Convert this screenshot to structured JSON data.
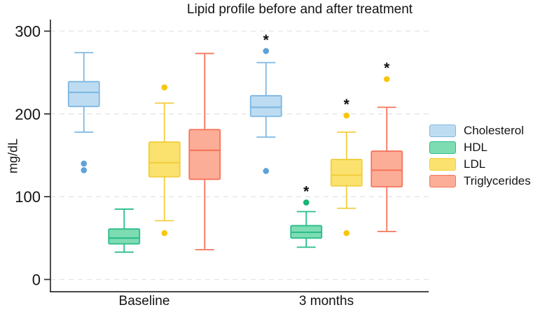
{
  "title": "Lipid profile before and after treatment",
  "y_axis": {
    "label": "mg/dL",
    "tick_labels": [
      "300",
      "200",
      "100",
      "0"
    ]
  },
  "x_axis": {
    "categories": [
      "Baseline",
      "3 months"
    ]
  },
  "significance_symbol": "*",
  "legend": {
    "position": "right",
    "items": [
      {
        "label": "Cholesterol",
        "fill": "#BEDCF1",
        "stroke": "#7EB8E3"
      },
      {
        "label": "HDL",
        "fill": "#7EDCB3",
        "stroke": "#2ABD8B"
      },
      {
        "label": "LDL",
        "fill": "#FBE26E",
        "stroke": "#F2CE3F"
      },
      {
        "label": "Triglycerides",
        "fill": "#FCAD97",
        "stroke": "#F4765C"
      }
    ]
  },
  "chart_data": {
    "type": "box",
    "title": "Lipid profile before and after treatment",
    "xlabel": "",
    "ylabel": "mg/dL",
    "yticks": [
      0,
      100,
      200,
      300
    ],
    "ylim": [
      -15,
      315
    ],
    "grid": "horizontal dashed gridlines at yticks",
    "legend_position": "right",
    "categories": [
      "Baseline",
      "3 months"
    ],
    "series": [
      {
        "name": "Cholesterol",
        "fill": "#BEDCF1",
        "stroke": "#7EB8E3",
        "outlier_color": "#5FA2D7",
        "boxes": [
          {
            "category": "Baseline",
            "low": 178,
            "q1": 209,
            "median": 226,
            "q3": 239,
            "high": 274,
            "outliers": [
              {
                "value": 140
              },
              {
                "value": 132
              }
            ],
            "significant": false
          },
          {
            "category": "3 months",
            "low": 172,
            "q1": 197,
            "median": 208,
            "q3": 222,
            "high": 262,
            "outliers": [
              {
                "value": 276
              },
              {
                "value": 131
              }
            ],
            "significant": true
          }
        ]
      },
      {
        "name": "HDL",
        "fill": "#7EDCB3",
        "stroke": "#2ABD8B",
        "outlier_color": "#19B377",
        "boxes": [
          {
            "category": "Baseline",
            "low": 33,
            "q1": 43,
            "median": 50,
            "q3": 61,
            "high": 85,
            "outliers": [],
            "significant": false
          },
          {
            "category": "3 months",
            "low": 39,
            "q1": 50,
            "median": 57,
            "q3": 65,
            "high": 82,
            "outliers": [
              {
                "value": 93
              }
            ],
            "significant": true
          }
        ]
      },
      {
        "name": "LDL",
        "fill": "#FBE26E",
        "stroke": "#F2CE3F",
        "outlier_color": "#F8C60D",
        "boxes": [
          {
            "category": "Baseline",
            "low": 71,
            "q1": 124,
            "median": 141,
            "q3": 166,
            "high": 213,
            "outliers": [
              {
                "value": 232
              },
              {
                "value": 56
              }
            ],
            "significant": false
          },
          {
            "category": "3 months",
            "low": 86,
            "q1": 113,
            "median": 126,
            "q3": 145,
            "high": 178,
            "outliers": [
              {
                "value": 198
              },
              {
                "value": 56
              }
            ],
            "significant": true
          }
        ]
      },
      {
        "name": "Triglycerides",
        "fill": "#FCAD97",
        "stroke": "#F4765C",
        "outlier_color": "#F4765C",
        "boxes": [
          {
            "category": "Baseline",
            "low": 36,
            "q1": 121,
            "median": 156,
            "q3": 181,
            "high": 273,
            "outliers": [],
            "significant": false
          },
          {
            "category": "3 months",
            "low": 58,
            "q1": 112,
            "median": 132,
            "q3": 155,
            "high": 208,
            "outliers": [
              {
                "value": 242,
                "color": "#F8C60D"
              }
            ],
            "significant": true
          }
        ]
      }
    ]
  }
}
